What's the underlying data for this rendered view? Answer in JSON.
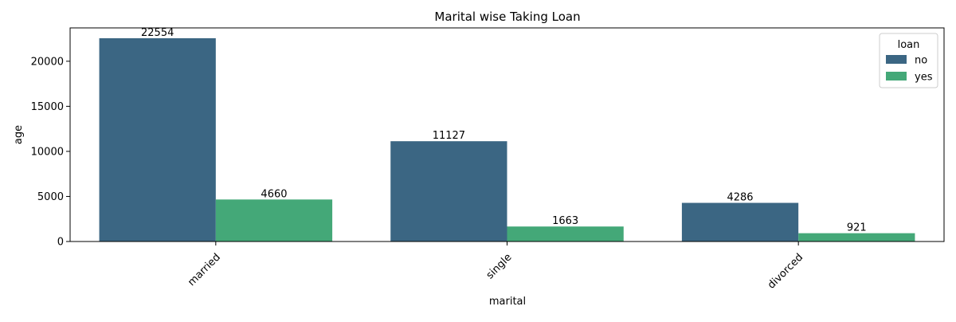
{
  "chart_data": {
    "type": "bar",
    "title": "Marital wise Taking Loan",
    "xlabel": "marital",
    "ylabel": "age",
    "categories": [
      "married",
      "single",
      "divorced"
    ],
    "series": [
      {
        "name": "no",
        "color": "#3b6683",
        "values": [
          22554,
          11127,
          4286
        ]
      },
      {
        "name": "yes",
        "color": "#44a878",
        "values": [
          4660,
          1663,
          921
        ]
      }
    ],
    "ylim": [
      0,
      23700
    ],
    "yticks": [
      0,
      5000,
      10000,
      15000,
      20000
    ],
    "legend": {
      "title": "loan",
      "position": "top-right"
    },
    "grid": false
  }
}
